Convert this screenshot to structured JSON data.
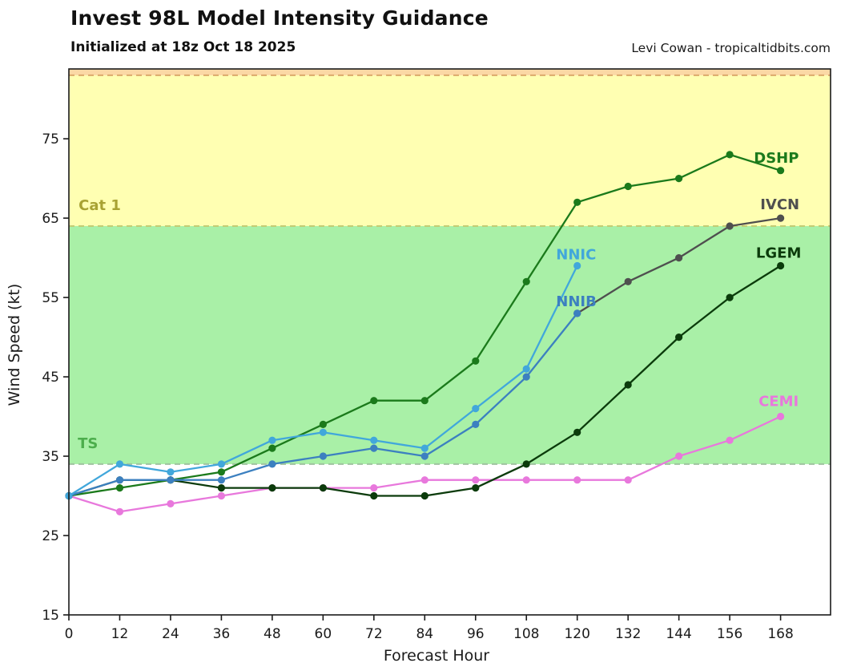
{
  "header": {
    "title": "Invest 98L Model Intensity Guidance",
    "subtitle": "Initialized at 18z Oct 18 2025",
    "credit": "Levi Cowan - tropicaltidbits.com"
  },
  "chart_data": {
    "type": "line",
    "title": "Invest 98L Model Intensity Guidance",
    "subtitle": "Initialized at 18z Oct 18 2025",
    "credit": "Levi Cowan - tropicaltidbits.com",
    "xlabel": "Forecast Hour",
    "ylabel": "Wind Speed (kt)",
    "x_hours": [
      0,
      12,
      24,
      36,
      48,
      60,
      72,
      84,
      96,
      108,
      120,
      132,
      144,
      156,
      168
    ],
    "xticks": [
      0,
      12,
      24,
      36,
      48,
      60,
      72,
      84,
      96,
      108,
      120,
      132,
      144,
      156,
      168
    ],
    "yticks": [
      15,
      25,
      35,
      45,
      55,
      65,
      75
    ],
    "xlim": [
      0,
      179.8
    ],
    "ylim": [
      15,
      83.8
    ],
    "grid": false,
    "legend_position": "end-of-line labels",
    "bands": [
      {
        "name": "tropical-storm-band",
        "from": 34,
        "to": 64,
        "fill": "#A9F0A7"
      },
      {
        "name": "cat1-band",
        "from": 64,
        "to": 83,
        "fill": "#FFFFB2"
      },
      {
        "name": "cat2-band",
        "from": 83,
        "to": 83.8,
        "fill": "#FBD8A5"
      }
    ],
    "threshold_lines": [
      {
        "name": "ts-threshold",
        "value": 34,
        "color": "#9FC49F"
      },
      {
        "name": "cat1-threshold",
        "value": 64,
        "color": "#C3CD74"
      },
      {
        "name": "cat2-threshold",
        "value": 83,
        "color": "#DCA96B"
      }
    ],
    "series": [
      {
        "name": "IVCN",
        "color": "#4F4F4F",
        "values": [
          null,
          null,
          null,
          null,
          null,
          null,
          null,
          null,
          null,
          null,
          53,
          57,
          60,
          64,
          65
        ]
      },
      {
        "name": "CEMI",
        "color": "#E878DC",
        "values": [
          30,
          28,
          29,
          30,
          31,
          31,
          31,
          32,
          32,
          32,
          32,
          32,
          35,
          37,
          40
        ]
      },
      {
        "name": "DSHP",
        "color": "#1B7A1B",
        "values": [
          30,
          31,
          32,
          33,
          36,
          39,
          42,
          42,
          47,
          57,
          67,
          69,
          70,
          73,
          71
        ]
      },
      {
        "name": "LGEM",
        "color": "#0B3B0B",
        "values": [
          30,
          32,
          32,
          31,
          31,
          31,
          30,
          30,
          31,
          34,
          38,
          44,
          50,
          55,
          59
        ]
      },
      {
        "name": "NNIB",
        "color": "#3C80C0",
        "values": [
          30,
          32,
          32,
          32,
          34,
          35,
          36,
          35,
          39,
          45,
          53,
          null,
          null,
          null,
          null
        ]
      },
      {
        "name": "NNIC",
        "color": "#41A7DB",
        "values": [
          30,
          34,
          33,
          34,
          37,
          38,
          37,
          36,
          41,
          46,
          59,
          null,
          null,
          null,
          null
        ]
      }
    ],
    "annotations": [
      {
        "text": "TS",
        "hour": 2.1,
        "kt": 36.0,
        "color": "#4CAE4C"
      },
      {
        "text": "Cat 1",
        "hour": 2.3,
        "kt": 66.0,
        "color": "#A8A233"
      },
      {
        "text": "NNIC",
        "hour": 115.0,
        "kt": 59.8,
        "color": "#41A7DB"
      },
      {
        "text": "NNIB",
        "hour": 115.0,
        "kt": 53.9,
        "color": "#3C80C0"
      },
      {
        "text": "DSHP",
        "hour": 161.7,
        "kt": 72.0,
        "color": "#1B7A1B"
      },
      {
        "text": "IVCN",
        "hour": 163.2,
        "kt": 66.1,
        "color": "#4F4F4F"
      },
      {
        "text": "LGEM",
        "hour": 162.2,
        "kt": 60.0,
        "color": "#0B3B0B"
      },
      {
        "text": "CEMI",
        "hour": 162.8,
        "kt": 41.3,
        "color": "#E878DC"
      }
    ]
  }
}
